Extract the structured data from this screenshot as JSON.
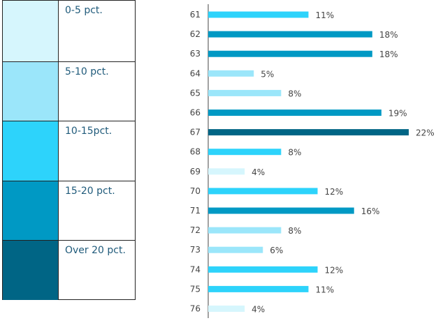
{
  "legend": {
    "items": [
      {
        "label": "0-5 pct.",
        "color": "#d6f6fd"
      },
      {
        "label": "5-10 pct.",
        "color": "#9be6fa"
      },
      {
        "label": "10-15pct.",
        "color": "#2dd3fb"
      },
      {
        "label": "15-20 pct.",
        "color": "#0099c4"
      },
      {
        "label": "Over 20 pct.",
        "color": "#006585"
      }
    ]
  },
  "chart_data": {
    "type": "bar",
    "orientation": "horizontal",
    "categories": [
      "61",
      "62",
      "63",
      "64",
      "65",
      "66",
      "67",
      "68",
      "69",
      "70",
      "71",
      "72",
      "73",
      "74",
      "75",
      "76"
    ],
    "values": [
      11,
      18,
      18,
      5,
      8,
      19,
      22,
      8,
      4,
      12,
      16,
      8,
      6,
      12,
      11,
      4
    ],
    "value_labels": [
      "11%",
      "18%",
      "18%",
      "5%",
      "8%",
      "19%",
      "22%",
      "8%",
      "4%",
      "12%",
      "16%",
      "8%",
      "6%",
      "12%",
      "11%",
      "4%"
    ],
    "bar_colors": [
      "#2dd3fb",
      "#0099c4",
      "#0099c4",
      "#9be6fa",
      "#9be6fa",
      "#0099c4",
      "#006585",
      "#2dd3fb",
      "#d6f6fd",
      "#2dd3fb",
      "#0099c4",
      "#9be6fa",
      "#9be6fa",
      "#2dd3fb",
      "#2dd3fb",
      "#d6f6fd"
    ],
    "xlim": [
      0,
      22
    ],
    "grid": false,
    "legend_placement": "left",
    "title": "",
    "xlabel": "",
    "ylabel": ""
  }
}
